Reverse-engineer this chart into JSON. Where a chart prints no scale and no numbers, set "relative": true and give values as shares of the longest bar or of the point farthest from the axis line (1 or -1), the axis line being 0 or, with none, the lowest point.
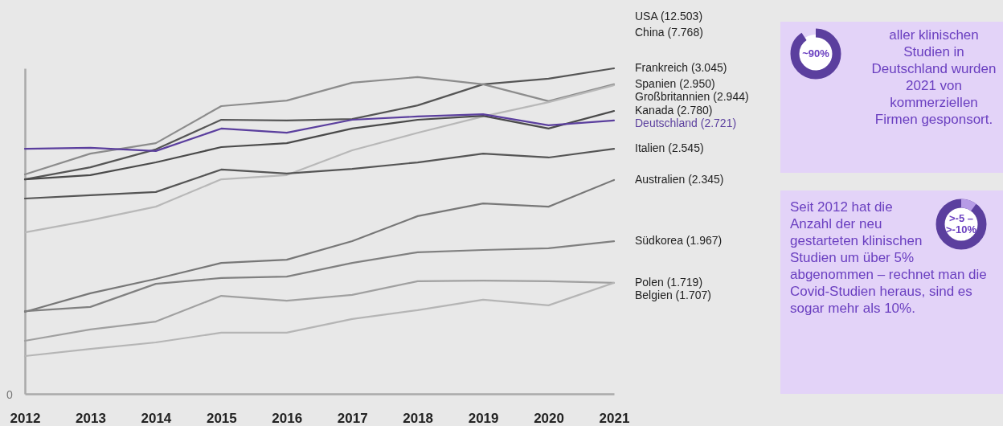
{
  "chart_data": {
    "type": "line",
    "relative": true,
    "tick_labels": "x",
    "legend": false,
    "categories": [
      "2012",
      "2013",
      "2014",
      "2015",
      "2016",
      "2017",
      "2018",
      "2019",
      "2020",
      "2021"
    ],
    "series": [
      {
        "name": "Frankreich (3.045)",
        "color": "#555555",
        "values": [
          0.659,
          0.696,
          0.751,
          0.842,
          0.84,
          0.844,
          0.886,
          0.951,
          0.968,
          1
        ]
      },
      {
        "name": "Spanien (2.950)",
        "color": "#8c8c8c",
        "values": [
          0.674,
          0.738,
          0.77,
          0.884,
          0.901,
          0.956,
          0.973,
          0.951,
          0.899,
          0.951
        ]
      },
      {
        "name": "Großbritannien (2.944)",
        "color": "#b8b8b8",
        "values": [
          0.496,
          0.533,
          0.575,
          0.659,
          0.672,
          0.748,
          0.802,
          0.852,
          0.896,
          0.948
        ]
      },
      {
        "name": "Kanada (2.780)",
        "color": "#4a4a4a",
        "values": [
          0.659,
          0.672,
          0.711,
          0.758,
          0.77,
          0.815,
          0.842,
          0.854,
          0.815,
          0.869
        ]
      },
      {
        "name": "Deutschland (2.721)",
        "color": "#5b3f9e",
        "values": [
          0.753,
          0.756,
          0.746,
          0.815,
          0.802,
          0.842,
          0.852,
          0.859,
          0.825,
          0.84
        ]
      },
      {
        "name": "Italien (2.545)",
        "color": "#555555",
        "values": [
          0.6,
          0.61,
          0.62,
          0.689,
          0.677,
          0.691,
          0.711,
          0.738,
          0.726,
          0.753
        ]
      },
      {
        "name": "Australien (2.345)",
        "color": "#777777",
        "values": [
          0.252,
          0.309,
          0.353,
          0.402,
          0.412,
          0.469,
          0.546,
          0.585,
          0.575,
          0.657
        ]
      },
      {
        "name": "Südkorea (1.967)",
        "color": "#808080",
        "values": [
          0.254,
          0.267,
          0.338,
          0.356,
          0.36,
          0.402,
          0.435,
          0.442,
          0.447,
          0.469
        ]
      },
      {
        "name": "Polen (1.719)",
        "color": "#a0a0a0",
        "values": [
          0.163,
          0.198,
          0.222,
          0.301,
          0.286,
          0.304,
          0.346,
          0.348,
          0.346,
          0.341
        ]
      },
      {
        "name": "Belgien (1.707)",
        "color": "#b5b5b5",
        "values": [
          0.116,
          0.138,
          0.158,
          0.188,
          0.188,
          0.23,
          0.257,
          0.289,
          0.272,
          0.341
        ]
      }
    ],
    "annotations": [
      "USA (12.503)",
      "China (7.768)",
      "0",
      "~90%",
      "aller klinischen Studien in Deutschland wurden 2021 von kommerziellen Firmen gesponsort.",
      ">-5 – >-10%",
      "Seit 2012 hat die Anzahl der neu gestarteten klinischen Studien um über 5% abgenommen – rechnet man die Covid-Studien heraus, sind es sogar mehr als 10%."
    ]
  }
}
